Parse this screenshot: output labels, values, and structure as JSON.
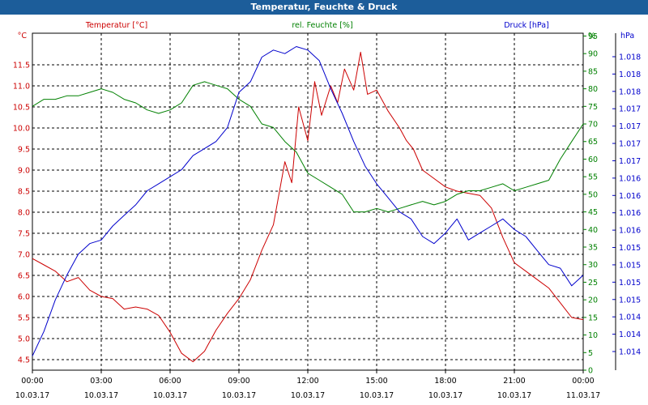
{
  "window": {
    "title": "Temperatur, Feuchte & Druck"
  },
  "colors": {
    "temperature": "#cc0000",
    "humidity": "#008000",
    "pressure": "#0000cc",
    "grid": "#000000",
    "titlebar": "#1c5d9a"
  },
  "chart_data": {
    "type": "line",
    "title": "Temperatur, Feuchte & Druck",
    "grid": true,
    "axes": {
      "left": {
        "unit": "°C",
        "ylim": [
          4.25,
          12.25
        ],
        "ticks": [
          "4.5",
          "5.0",
          "5.5",
          "6.0",
          "6.5",
          "7.0",
          "7.5",
          "8.0",
          "8.5",
          "9.0",
          "9.5",
          "10.0",
          "10.5",
          "11.0",
          "11.5"
        ]
      },
      "right1": {
        "unit": "%",
        "ylim": [
          0,
          95
        ],
        "ticks": [
          "0",
          "5",
          "10",
          "15",
          "20",
          "25",
          "30",
          "35",
          "40",
          "45",
          "50",
          "55",
          "60",
          "65",
          "70",
          "75",
          "80",
          "85",
          "90",
          "95"
        ]
      },
      "right2": {
        "unit": "hPa",
        "ticks": [
          "1.014",
          "1.014",
          "1.014",
          "1.015",
          "1.015",
          "1.015",
          "1.015",
          "1.016",
          "1.016",
          "1.016",
          "1.016",
          "1.017",
          "1.017",
          "1.017",
          "1.017",
          "1.018",
          "1.018",
          "1.018"
        ]
      }
    },
    "x_ticks": [
      {
        "time": "00:00",
        "date": "10.03.17"
      },
      {
        "time": "03:00",
        "date": "10.03.17"
      },
      {
        "time": "06:00",
        "date": "10.03.17"
      },
      {
        "time": "09:00",
        "date": "10.03.17"
      },
      {
        "time": "12:00",
        "date": "10.03.17"
      },
      {
        "time": "15:00",
        "date": "10.03.17"
      },
      {
        "time": "18:00",
        "date": "10.03.17"
      },
      {
        "time": "21:00",
        "date": "10.03.17"
      },
      {
        "time": "00:00",
        "date": "11.03.17"
      }
    ],
    "series": [
      {
        "name": "Temperatur [°C]",
        "axis": "left",
        "x": [
          0,
          0.5,
          1,
          1.5,
          2,
          2.5,
          3,
          3.5,
          4,
          4.5,
          5,
          5.5,
          6,
          6.5,
          7,
          7.5,
          8,
          8.5,
          9,
          9.5,
          10,
          10.5,
          11,
          11.3,
          11.6,
          12,
          12.3,
          12.6,
          13,
          13.3,
          13.6,
          14,
          14.3,
          14.6,
          15,
          15.5,
          16,
          16.3,
          16.6,
          17,
          17.5,
          18,
          18.5,
          19,
          19.5,
          20,
          20.5,
          21,
          21.5,
          22,
          22.5,
          23,
          23.5,
          24
        ],
        "y": [
          6.9,
          6.75,
          6.6,
          6.35,
          6.45,
          6.15,
          6.0,
          5.95,
          5.7,
          5.75,
          5.7,
          5.55,
          5.15,
          4.65,
          4.45,
          4.7,
          5.2,
          5.6,
          5.95,
          6.4,
          7.1,
          7.7,
          9.2,
          8.7,
          10.5,
          9.7,
          11.1,
          10.3,
          11.0,
          10.6,
          11.4,
          10.9,
          11.8,
          10.8,
          10.9,
          10.4,
          10.0,
          9.7,
          9.5,
          9.0,
          8.8,
          8.6,
          8.5,
          8.45,
          8.4,
          8.1,
          7.4,
          6.8,
          6.6,
          6.4,
          6.2,
          5.85,
          5.5,
          5.45
        ]
      },
      {
        "name": "rel. Feuchte [%]",
        "axis": "right1",
        "x": [
          0,
          0.5,
          1,
          1.5,
          2,
          2.5,
          3,
          3.5,
          4,
          4.5,
          5,
          5.5,
          6,
          6.5,
          7,
          7.5,
          8,
          8.5,
          9,
          9.5,
          10,
          10.5,
          11,
          11.5,
          12,
          12.5,
          13,
          13.5,
          14,
          14.5,
          15,
          15.5,
          16,
          16.5,
          17,
          17.5,
          18,
          18.5,
          19,
          19.5,
          20,
          20.5,
          21,
          21.5,
          22,
          22.5,
          23,
          23.5,
          24
        ],
        "y": [
          75,
          77,
          77,
          78,
          78,
          79,
          80,
          79,
          77,
          76,
          74,
          73,
          74,
          76,
          81,
          82,
          81,
          80,
          77,
          75,
          70,
          69,
          65,
          62,
          56,
          54,
          52,
          50,
          45,
          45,
          46,
          45,
          46,
          47,
          48,
          47,
          48,
          50,
          51,
          51,
          52,
          53,
          51,
          52,
          53,
          54,
          60,
          65,
          70
        ]
      },
      {
        "name": "Druck [hPa]",
        "axis": "right2",
        "x": [
          0,
          0.5,
          1,
          1.5,
          2,
          2.5,
          3,
          3.5,
          4,
          4.5,
          5,
          5.5,
          6,
          6.5,
          7,
          7.5,
          8,
          8.5,
          9,
          9.5,
          10,
          10.5,
          11,
          11.5,
          12,
          12.5,
          13,
          13.5,
          14,
          14.5,
          15,
          15.5,
          16,
          16.5,
          17,
          17.5,
          18,
          18.5,
          19,
          19.5,
          20,
          20.5,
          21,
          21.5,
          22,
          22.5,
          23,
          23.5,
          24
        ],
        "y": [
          4,
          11,
          20,
          27,
          33,
          36,
          37,
          41,
          44,
          47,
          51,
          53,
          55,
          57,
          61,
          63,
          65,
          69,
          79,
          82,
          89,
          91,
          90,
          92,
          91,
          88,
          80,
          73,
          65,
          58,
          53,
          49,
          45,
          43,
          38,
          36,
          39,
          43,
          37,
          39,
          41,
          43,
          40,
          38,
          34,
          30,
          29,
          24,
          27
        ]
      }
    ]
  }
}
